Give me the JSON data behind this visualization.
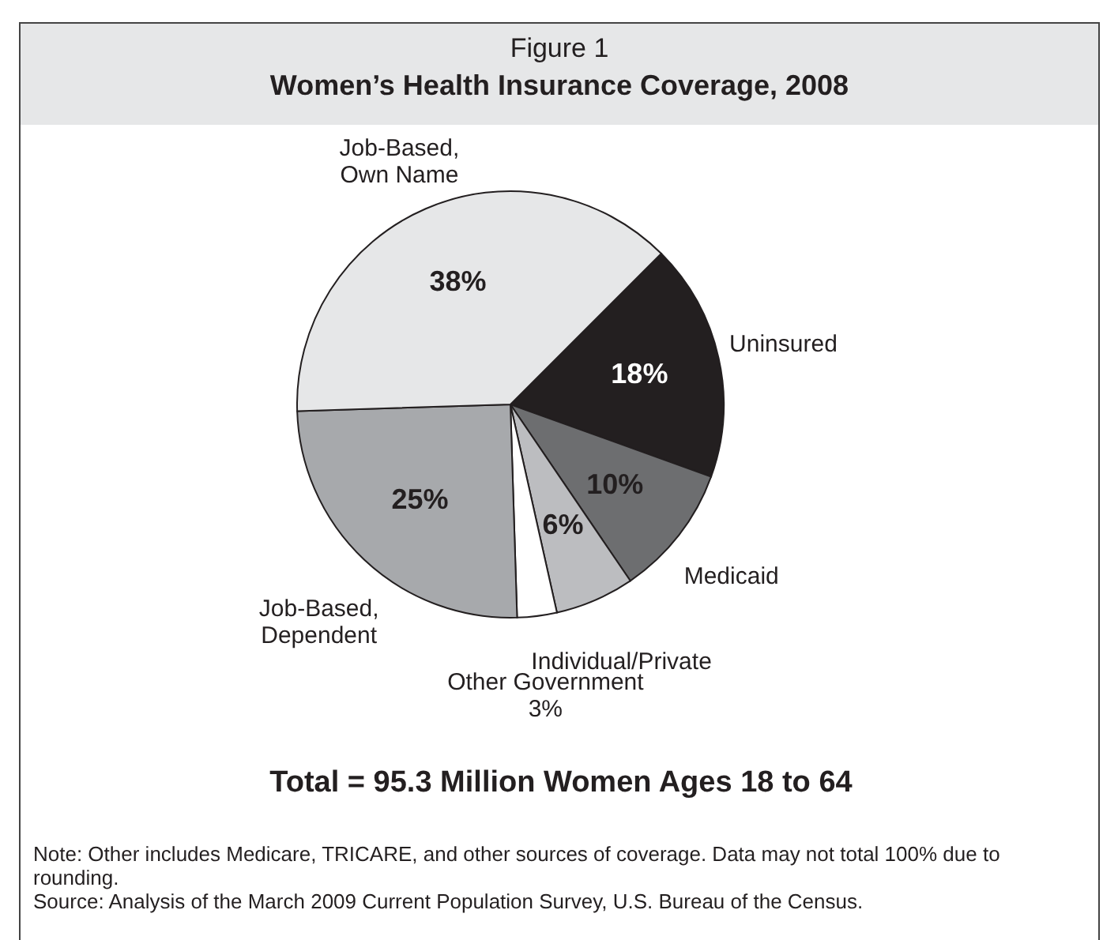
{
  "chart_data": {
    "type": "pie",
    "subtitle": "Figure 1",
    "title": "Women’s Health Insurance Coverage, 2008",
    "categories": [
      "Uninsured",
      "Medicaid",
      "Individual/Private",
      "Other Government",
      "Job-Based, Dependent",
      "Job-Based, Own Name"
    ],
    "values": [
      18,
      10,
      6,
      3,
      25,
      38
    ],
    "value_labels": [
      "18%",
      "10%",
      "6%",
      "3%",
      "25%",
      "38%"
    ],
    "colors": [
      "#231f20",
      "#6d6e70",
      "#bcbdc0",
      "#ffffff",
      "#a7a9ac",
      "#e6e7e8"
    ],
    "annotations": [
      "Total = 95.3 Million Women Ages 18 to 64",
      "Note:  Other includes Medicare, TRICARE, and other sources of coverage. Data may not total 100% due to rounding.",
      "Source:  Analysis of the March 2009 Current Population Survey, U.S. Bureau of the Census."
    ]
  }
}
